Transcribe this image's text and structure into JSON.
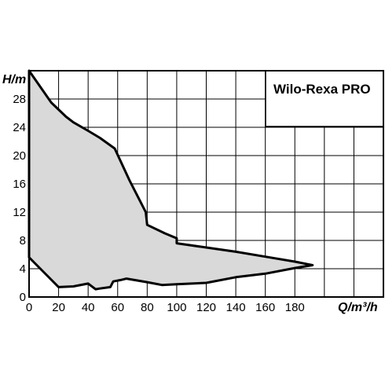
{
  "chart_data": {
    "type": "area",
    "title": "Wilo-Rexa PRO",
    "xlabel": "Q/m³/h",
    "ylabel": "H/m",
    "xlim": [
      0,
      240
    ],
    "ylim": [
      0,
      32
    ],
    "x_ticks": [
      "0",
      "20",
      "40",
      "60",
      "80",
      "100",
      "120",
      "140",
      "160",
      "180"
    ],
    "y_ticks": [
      "0",
      "4",
      "8",
      "12",
      "16",
      "20",
      "24",
      "28"
    ],
    "grid": true,
    "legend": "top-right",
    "series": [
      {
        "type": "outline",
        "points": [
          [
            0,
            32
          ],
          [
            5,
            30.5
          ],
          [
            10,
            29
          ],
          [
            15,
            27.5
          ],
          [
            20,
            26.5
          ],
          [
            25,
            25.5
          ],
          [
            30,
            24.7
          ],
          [
            40,
            23.5
          ],
          [
            48,
            22.5
          ],
          [
            58,
            21
          ],
          [
            68,
            16.5
          ],
          [
            79,
            12
          ],
          [
            80,
            10.2
          ],
          [
            92,
            9
          ],
          [
            100,
            8.3
          ],
          [
            100,
            7.6
          ],
          [
            120,
            7
          ],
          [
            140,
            6.4
          ],
          [
            160,
            5.7
          ],
          [
            180,
            5
          ],
          [
            192,
            4.5
          ],
          [
            180,
            4.1
          ],
          [
            160,
            3.3
          ],
          [
            140,
            2.8
          ],
          [
            120,
            2
          ],
          [
            100,
            1.8
          ],
          [
            90,
            1.7
          ],
          [
            80,
            2.1
          ],
          [
            66,
            2.6
          ],
          [
            62,
            2.4
          ],
          [
            57,
            2.2
          ],
          [
            55,
            1.4
          ],
          [
            48,
            1.2
          ],
          [
            45,
            1.1
          ],
          [
            40,
            1.9
          ],
          [
            30,
            1.5
          ],
          [
            20,
            1.4
          ],
          [
            10,
            3.5
          ],
          [
            0,
            5.6
          ]
        ]
      }
    ],
    "colors": {
      "fill": "#d9d9d9",
      "stroke": "#000000",
      "grid": "#000000"
    }
  }
}
